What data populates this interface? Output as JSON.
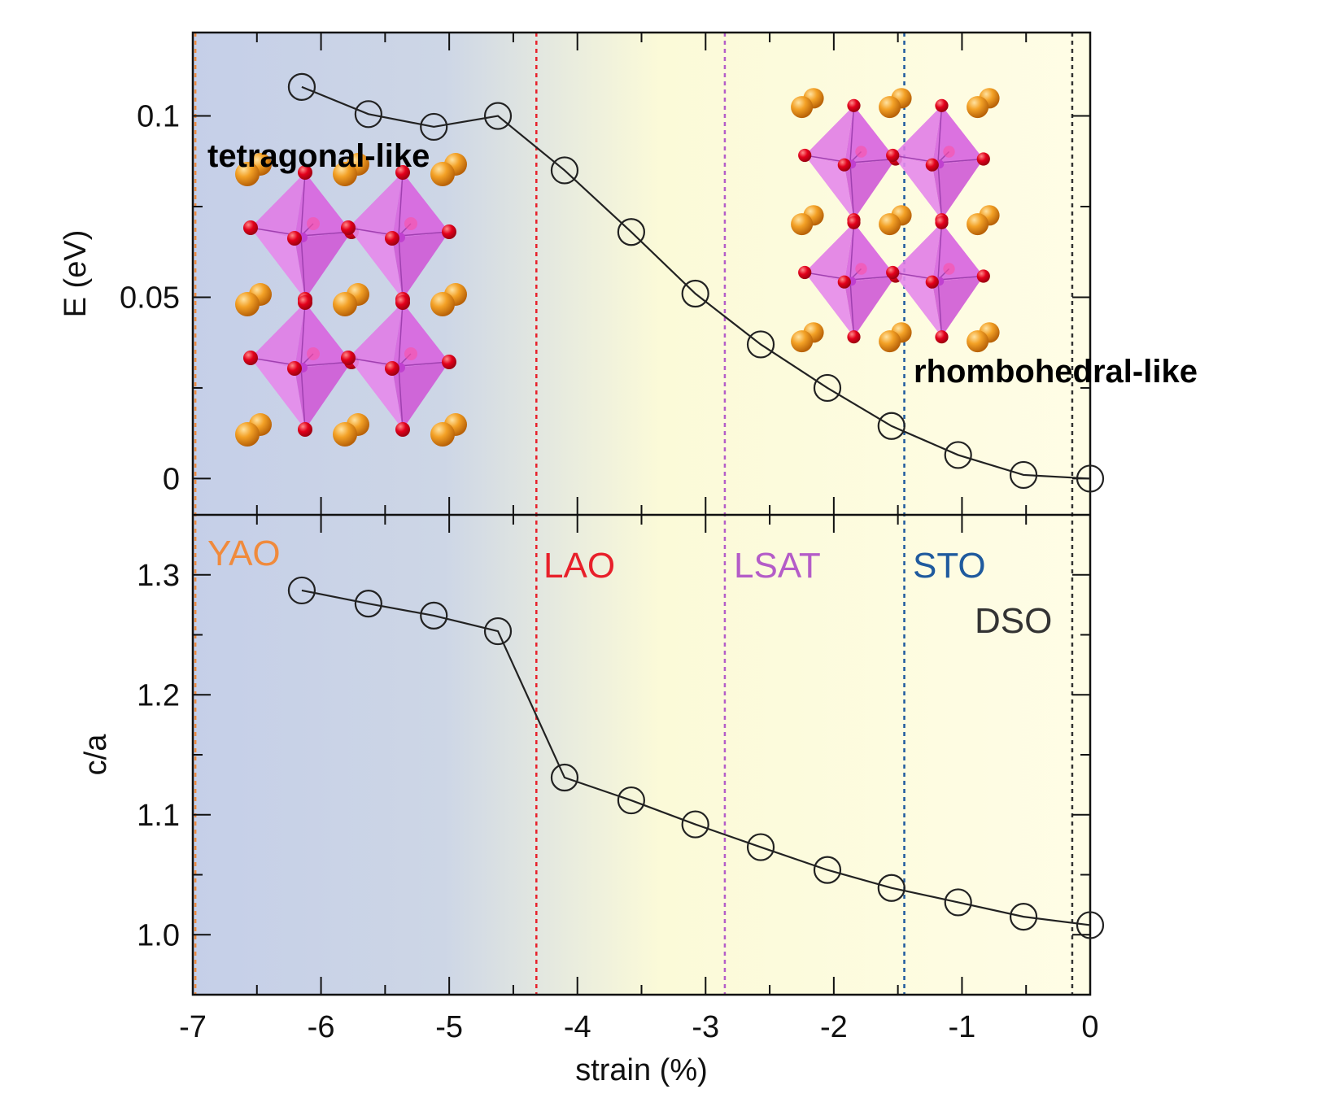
{
  "chart_data": [
    {
      "type": "line",
      "panel": "top",
      "xlabel": "",
      "ylabel": "E (eV)",
      "xlim": [
        -7,
        0
      ],
      "ylim": [
        -0.01,
        0.123
      ],
      "y_ticks": [
        0,
        0.05,
        0.1
      ],
      "y_tick_labels": [
        "0",
        "0.05",
        "0.1"
      ],
      "x": [
        -6.15,
        -5.63,
        -5.12,
        -4.62,
        -4.1,
        -3.58,
        -3.08,
        -2.57,
        -2.05,
        -1.55,
        -1.03,
        -0.52,
        0
      ],
      "y": [
        0.108,
        0.1005,
        0.097,
        0.1,
        0.085,
        0.068,
        0.051,
        0.037,
        0.025,
        0.0145,
        0.0065,
        0.001,
        0
      ],
      "annotations": [
        "tetragonal-like",
        "rhombohedral-like"
      ]
    },
    {
      "type": "line",
      "panel": "bottom",
      "xlabel": "strain (%)",
      "ylabel": "c/a",
      "xlim": [
        -7,
        0
      ],
      "ylim": [
        0.95,
        1.35
      ],
      "x_ticks": [
        -7,
        -6,
        -5,
        -4,
        -3,
        -2,
        -1,
        0
      ],
      "x_tick_labels": [
        "-7",
        "-6",
        "-5",
        "-4",
        "-3",
        "-2",
        "-1",
        "0"
      ],
      "y_ticks": [
        1.0,
        1.1,
        1.2,
        1.3
      ],
      "y_tick_labels": [
        "1.0",
        "1.1",
        "1.2",
        "1.3"
      ],
      "x": [
        -6.15,
        -5.63,
        -5.12,
        -4.62,
        -4.1,
        -3.58,
        -3.08,
        -2.57,
        -2.05,
        -1.55,
        -1.03,
        -0.52,
        0
      ],
      "y": [
        1.287,
        1.276,
        1.266,
        1.253,
        1.131,
        1.112,
        1.092,
        1.073,
        1.054,
        1.039,
        1.027,
        1.015,
        1.008
      ]
    }
  ],
  "substrates": [
    {
      "label": "YAO",
      "strain": -6.98,
      "color": "#f08a3c"
    },
    {
      "label": "LAO",
      "strain": -4.32,
      "color": "#e8202a"
    },
    {
      "label": "LSAT",
      "strain": -2.85,
      "color": "#b45cc8"
    },
    {
      "label": "STO",
      "strain": -1.45,
      "color": "#1f5a9e"
    },
    {
      "label": "DSO",
      "strain": -0.14,
      "color": "#333333"
    }
  ],
  "colors": {
    "background_left": "#c5cfe8",
    "background_right": "#fffde4",
    "octahedron": "#e07ae6",
    "a_site_atom": "#f39a1f",
    "oxygen_atom": "#e2001a",
    "marker": "#222222"
  }
}
